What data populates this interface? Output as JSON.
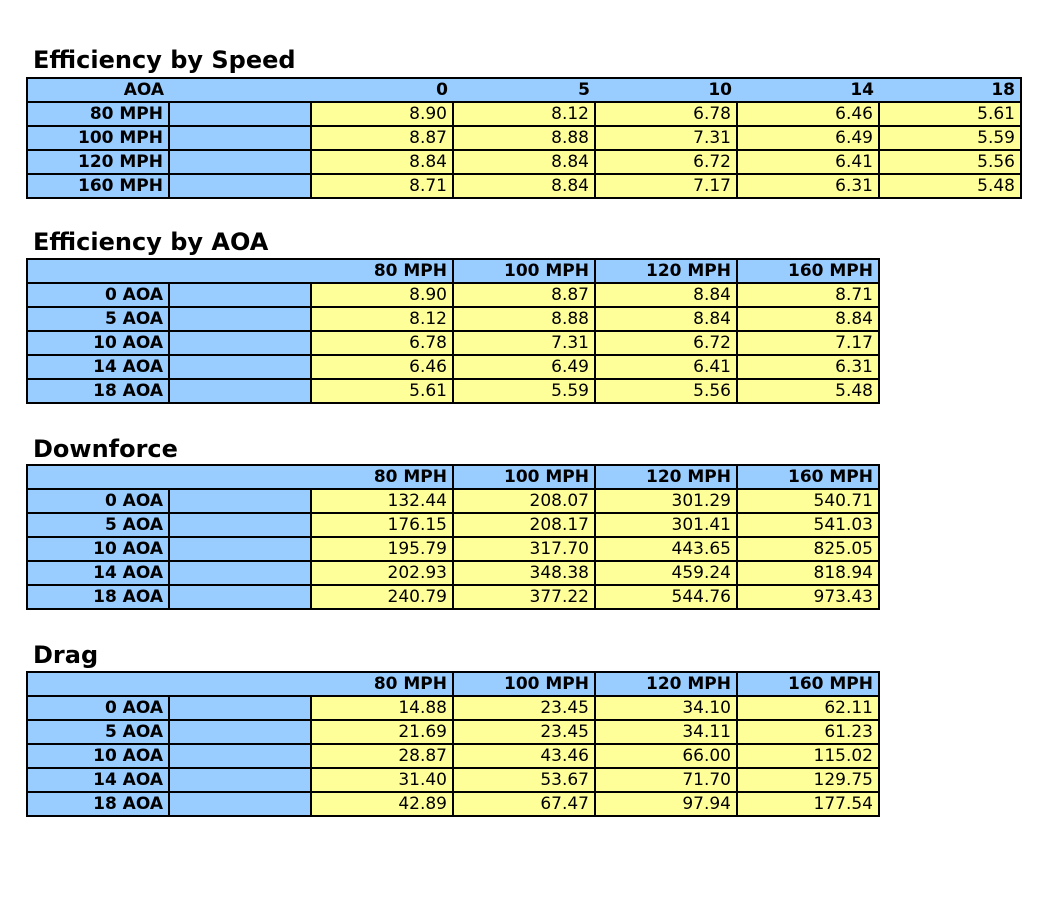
{
  "colors": {
    "header_blue": "#99ccff",
    "value_yellow": "#ffff99",
    "border": "#000000"
  },
  "tables": [
    {
      "title": "Efficiency by Speed",
      "corner_label": "AOA",
      "columns": [
        "0",
        "5",
        "10",
        "14",
        "18"
      ],
      "rows": [
        {
          "label": "80 MPH",
          "values": [
            "8.90",
            "8.12",
            "6.78",
            "6.46",
            "5.61"
          ]
        },
        {
          "label": "100 MPH",
          "values": [
            "8.87",
            "8.88",
            "7.31",
            "6.49",
            "5.59"
          ]
        },
        {
          "label": "120 MPH",
          "values": [
            "8.84",
            "8.84",
            "6.72",
            "6.41",
            "5.56"
          ]
        },
        {
          "label": "160 MPH",
          "values": [
            "8.71",
            "8.84",
            "7.17",
            "6.31",
            "5.48"
          ]
        }
      ]
    },
    {
      "title": "Efficiency by AOA",
      "corner_label": "",
      "columns": [
        "80 MPH",
        "100 MPH",
        "120 MPH",
        "160 MPH"
      ],
      "rows": [
        {
          "label": "0 AOA",
          "values": [
            "8.90",
            "8.87",
            "8.84",
            "8.71"
          ]
        },
        {
          "label": "5 AOA",
          "values": [
            "8.12",
            "8.88",
            "8.84",
            "8.84"
          ]
        },
        {
          "label": "10 AOA",
          "values": [
            "6.78",
            "7.31",
            "6.72",
            "7.17"
          ]
        },
        {
          "label": "14 AOA",
          "values": [
            "6.46",
            "6.49",
            "6.41",
            "6.31"
          ]
        },
        {
          "label": "18 AOA",
          "values": [
            "5.61",
            "5.59",
            "5.56",
            "5.48"
          ]
        }
      ]
    },
    {
      "title": "Downforce",
      "corner_label": "",
      "columns": [
        "80 MPH",
        "100 MPH",
        "120 MPH",
        "160 MPH"
      ],
      "rows": [
        {
          "label": "0 AOA",
          "values": [
            "132.44",
            "208.07",
            "301.29",
            "540.71"
          ]
        },
        {
          "label": "5 AOA",
          "values": [
            "176.15",
            "208.17",
            "301.41",
            "541.03"
          ]
        },
        {
          "label": "10 AOA",
          "values": [
            "195.79",
            "317.70",
            "443.65",
            "825.05"
          ]
        },
        {
          "label": "14 AOA",
          "values": [
            "202.93",
            "348.38",
            "459.24",
            "818.94"
          ]
        },
        {
          "label": "18 AOA",
          "values": [
            "240.79",
            "377.22",
            "544.76",
            "973.43"
          ]
        }
      ]
    },
    {
      "title": "Drag",
      "corner_label": "",
      "columns": [
        "80 MPH",
        "100 MPH",
        "120 MPH",
        "160 MPH"
      ],
      "rows": [
        {
          "label": "0 AOA",
          "values": [
            "14.88",
            "23.45",
            "34.10",
            "62.11"
          ]
        },
        {
          "label": "5 AOA",
          "values": [
            "21.69",
            "23.45",
            "34.11",
            "61.23"
          ]
        },
        {
          "label": "10 AOA",
          "values": [
            "28.87",
            "43.46",
            "66.00",
            "115.02"
          ]
        },
        {
          "label": "14 AOA",
          "values": [
            "31.40",
            "53.67",
            "71.70",
            "129.75"
          ]
        },
        {
          "label": "18 AOA",
          "values": [
            "42.89",
            "67.47",
            "97.94",
            "177.54"
          ]
        }
      ]
    }
  ]
}
